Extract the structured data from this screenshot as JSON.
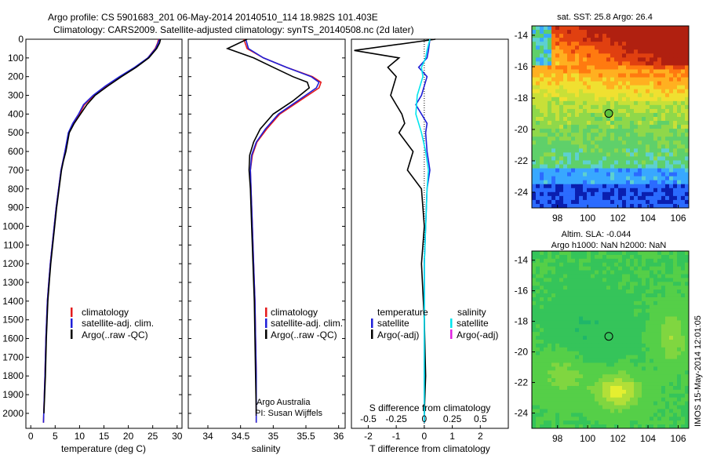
{
  "header": {
    "line1": "Argo profile: CS 5901683_201 06-May-2014 20140510_114 18.982S 101.403E",
    "line2": "Climatology: CARS2009. Satellite-adjusted climatology: synTS_20140508.nc (2d later)"
  },
  "side_stamp": "IMOS 15-May-2014 12:01:05",
  "colors": {
    "climatology": "#e41a1c",
    "satellite": "#1f1fd8",
    "argo": "#000000",
    "satellite_salinity_diff": "#00e5ee",
    "argo_adj_salinity_diff": "#e020e0"
  },
  "chart_data": [
    {
      "id": "temperature",
      "type": "line",
      "xlabel": "temperature (deg C)",
      "ylabel": "",
      "xlim": [
        -1,
        31
      ],
      "ylim": [
        2080,
        0
      ],
      "xticks": [
        0,
        5,
        10,
        15,
        20,
        25,
        30
      ],
      "yticks": [
        0,
        100,
        200,
        300,
        400,
        500,
        600,
        700,
        800,
        900,
        1000,
        1100,
        1200,
        1300,
        1400,
        1500,
        1600,
        1700,
        1800,
        1900,
        2000
      ],
      "legend": [
        "climatology",
        "satellite-adj. clim.",
        "Argo(..raw -QC)"
      ],
      "series": [
        {
          "name": "climatology",
          "color": "#e41a1c",
          "x": [
            26.2,
            26.0,
            25.5,
            24.0,
            21.5,
            18.5,
            15.5,
            13.0,
            11.0,
            10.0,
            8.8,
            7.8,
            7.0,
            6.6,
            6.2,
            5.7,
            5.2,
            4.8,
            4.4,
            4.0,
            3.7,
            3.4,
            3.1,
            2.9,
            2.6
          ],
          "y": [
            0,
            20,
            50,
            100,
            150,
            200,
            250,
            300,
            350,
            400,
            450,
            500,
            600,
            650,
            700,
            800,
            900,
            1000,
            1100,
            1200,
            1300,
            1400,
            1600,
            1800,
            2050
          ]
        },
        {
          "name": "satellite-adj. clim.",
          "color": "#1f1fd8",
          "x": [
            26.4,
            26.1,
            25.6,
            24.0,
            21.3,
            18.2,
            15.3,
            12.8,
            10.8,
            9.8,
            8.6,
            7.7,
            7.0,
            6.6,
            6.2,
            5.7,
            5.2,
            4.8,
            4.4,
            4.0,
            3.7,
            3.4,
            3.1,
            2.9,
            2.6
          ],
          "y": [
            0,
            20,
            50,
            100,
            150,
            200,
            250,
            300,
            350,
            400,
            450,
            500,
            600,
            650,
            700,
            800,
            900,
            1000,
            1100,
            1200,
            1300,
            1400,
            1600,
            1800,
            2050
          ]
        },
        {
          "name": "Argo(..raw -QC)",
          "color": "#000000",
          "x": [
            26.6,
            26.4,
            25.8,
            24.2,
            21.6,
            18.6,
            15.8,
            13.2,
            11.5,
            10.2,
            8.9,
            7.9,
            7.2,
            6.7,
            6.3,
            5.8,
            5.3,
            4.9,
            4.5,
            4.1,
            3.8,
            3.5,
            3.2,
            3.0,
            2.7
          ],
          "y": [
            0,
            20,
            50,
            100,
            150,
            200,
            250,
            300,
            350,
            400,
            450,
            500,
            600,
            650,
            700,
            800,
            900,
            1000,
            1100,
            1200,
            1300,
            1400,
            1600,
            1800,
            2000
          ]
        }
      ]
    },
    {
      "id": "salinity",
      "type": "line",
      "xlabel": "salinity",
      "ylabel": "",
      "xlim": [
        33.7,
        36.1
      ],
      "ylim": [
        2080,
        0
      ],
      "xticks": [
        34,
        34.5,
        35,
        35.5,
        36
      ],
      "xticklabels": [
        "34",
        "34.5",
        "35",
        "35.5",
        "36"
      ],
      "legend": [
        "climatology",
        "satellite-adj. clim.",
        "Argo(..raw -QC)"
      ],
      "annotation": [
        "Argo Australia",
        "PI: Susan Wijffels"
      ],
      "series": [
        {
          "name": "climatology",
          "color": "#e41a1c",
          "x": [
            34.55,
            34.6,
            34.85,
            35.2,
            35.6,
            35.73,
            35.7,
            35.4,
            35.1,
            34.9,
            34.75,
            34.68,
            34.65,
            34.66,
            34.68,
            34.7,
            34.72,
            34.73,
            34.74,
            34.74
          ],
          "y": [
            0,
            50,
            100,
            150,
            200,
            230,
            260,
            330,
            400,
            480,
            550,
            620,
            700,
            800,
            1000,
            1200,
            1400,
            1600,
            1800,
            2050
          ]
        },
        {
          "name": "satellite-adj. clim.",
          "color": "#1f1fd8",
          "x": [
            34.58,
            34.62,
            34.85,
            35.2,
            35.58,
            35.7,
            35.66,
            35.37,
            35.08,
            34.88,
            34.74,
            34.67,
            34.65,
            34.66,
            34.68,
            34.7,
            34.72,
            34.73,
            34.74,
            34.74
          ],
          "y": [
            0,
            50,
            100,
            150,
            200,
            230,
            260,
            330,
            400,
            480,
            550,
            620,
            700,
            800,
            1000,
            1200,
            1400,
            1600,
            1800,
            2050
          ]
        },
        {
          "name": "Argo(..raw -QC)",
          "color": "#000000",
          "x": [
            34.6,
            34.3,
            34.7,
            35.0,
            35.3,
            35.52,
            35.55,
            35.3,
            35.0,
            34.8,
            34.7,
            34.64,
            34.63,
            34.65,
            34.67,
            34.69,
            34.71,
            34.72,
            34.73,
            34.74
          ],
          "y": [
            0,
            50,
            100,
            150,
            200,
            230,
            260,
            330,
            400,
            480,
            550,
            620,
            700,
            800,
            1000,
            1200,
            1400,
            1600,
            1800,
            2000
          ]
        }
      ]
    },
    {
      "id": "difference",
      "type": "line",
      "xlabel": "T difference from climatology",
      "secondary_xlabel": "S difference from climatology",
      "ylabel": "",
      "xlim": [
        -2.6,
        3.0
      ],
      "ylim": [
        2080,
        0
      ],
      "xticks": [
        -2,
        -1,
        0,
        1,
        2
      ],
      "secondary_xticks": [
        -0.5,
        -0.25,
        0,
        0.25,
        0.5
      ],
      "secondary_xticklabels": [
        "-0.5",
        "-0.25",
        "0",
        "0.25",
        "0.5"
      ],
      "legend_titles": [
        "temperature",
        "salinity"
      ],
      "legend": [
        "satellite",
        "Argo(-adj)",
        "satellite",
        "Argo(-adj)"
      ],
      "series": [
        {
          "name": "satellite",
          "color": "#1f1fd8",
          "x": [
            0.2,
            0.15,
            0.1,
            -0.2,
            0.1,
            -0.1,
            -0.3,
            -0.1,
            0.1,
            0.05,
            0.1,
            0.2,
            0.1,
            0.05,
            0.0,
            0.0,
            0.0,
            0.0
          ],
          "y": [
            0,
            60,
            100,
            150,
            200,
            300,
            350,
            400,
            450,
            500,
            600,
            700,
            800,
            1000,
            1200,
            1500,
            1800,
            2050
          ]
        },
        {
          "name": "Argo(-adj)",
          "color": "#000000",
          "x": [
            0.4,
            -2.5,
            -0.9,
            -1.3,
            -1.0,
            -1.2,
            -1.0,
            -0.8,
            -0.7,
            -0.9,
            -0.4,
            -0.6,
            -0.1,
            0.0,
            -0.1,
            0.0,
            0.05,
            0.0
          ],
          "y": [
            0,
            60,
            100,
            150,
            200,
            300,
            350,
            400,
            450,
            500,
            600,
            700,
            800,
            1000,
            1200,
            1500,
            1800,
            2000
          ]
        },
        {
          "name": "satellite (salinity)",
          "color": "#00e5ee",
          "x": [
            0.2,
            0.1,
            0.05,
            -0.1,
            -0.05,
            -0.25,
            -0.3,
            -0.2,
            -0.1,
            0.05,
            0.15,
            0.1,
            0.05,
            0.0,
            0.0,
            0.0
          ],
          "y": [
            0,
            60,
            100,
            150,
            200,
            300,
            400,
            450,
            500,
            600,
            700,
            800,
            1000,
            1200,
            1600,
            2050
          ]
        }
      ]
    },
    {
      "id": "sst-map",
      "type": "heatmap",
      "title": "sat. SST: 25.8 Argo: 26.4",
      "xticks": [
        98,
        100,
        102,
        104,
        106
      ],
      "yticks": [
        -14,
        -16,
        -18,
        -20,
        -22,
        -24
      ],
      "xlim": [
        96.3,
        106.7
      ],
      "ylim": [
        -25,
        -13.4
      ],
      "marker": {
        "lon": 101.4,
        "lat": -18.98
      },
      "palette": [
        "#0a1fb0",
        "#2b6bff",
        "#38a8ff",
        "#5dd0d0",
        "#5fd06a",
        "#8fd84a",
        "#c8e038",
        "#f0e030",
        "#ffb020",
        "#ff7a10",
        "#e04010",
        "#b02010"
      ]
    },
    {
      "id": "sla-map",
      "type": "heatmap",
      "title": "Altim. SLA: -0.044",
      "subtitle": "Argo h1000: NaN h2000: NaN",
      "xticks": [
        98,
        100,
        102,
        104,
        106
      ],
      "yticks": [
        -14,
        -16,
        -18,
        -20,
        -22,
        -24
      ],
      "xlim": [
        96.3,
        106.7
      ],
      "ylim": [
        -25,
        -13.4
      ],
      "marker": {
        "lon": 101.4,
        "lat": -18.98
      },
      "palette": [
        "#1fb66a",
        "#35c45a",
        "#55cf48",
        "#80d640",
        "#b2df38",
        "#e4ef30"
      ]
    }
  ]
}
